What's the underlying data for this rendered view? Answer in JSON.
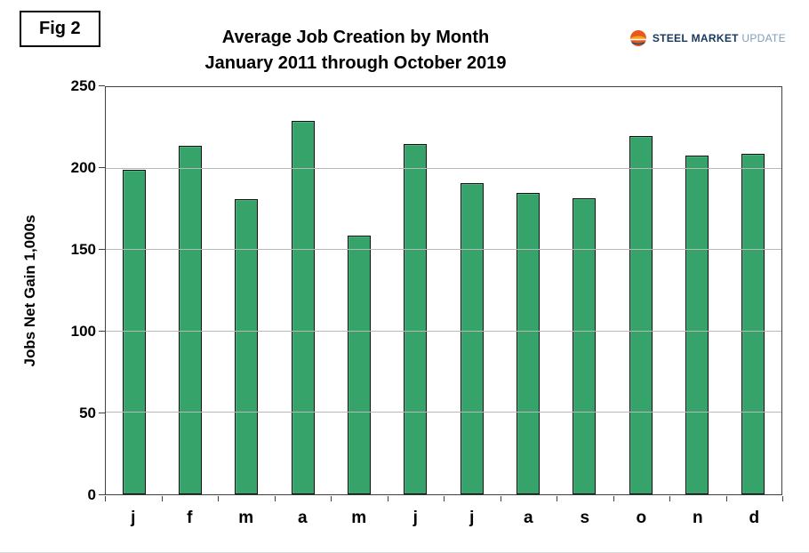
{
  "fig_label": "Fig 2",
  "logo": {
    "steel": "STEEL",
    "market": "MARKET",
    "update": "UPDATE"
  },
  "chart_data": {
    "type": "bar",
    "title_line1": "Average Job Creation by Month",
    "title_line2": "January 2011 through October 2019",
    "ylabel": "Jobs Net Gain 1,000s",
    "xlabel": "",
    "categories": [
      "j",
      "f",
      "m",
      "a",
      "m",
      "j",
      "j",
      "a",
      "s",
      "o",
      "n",
      "d"
    ],
    "values": [
      199,
      214,
      181,
      229,
      159,
      215,
      191,
      185,
      182,
      220,
      208,
      209
    ],
    "ylim": [
      0,
      250
    ],
    "ytick_step": 50,
    "grid": true,
    "legend": "none",
    "bar_color": "#35a36a",
    "bar_border_color": "#111111",
    "gridline_color": "#b8b8b8"
  }
}
